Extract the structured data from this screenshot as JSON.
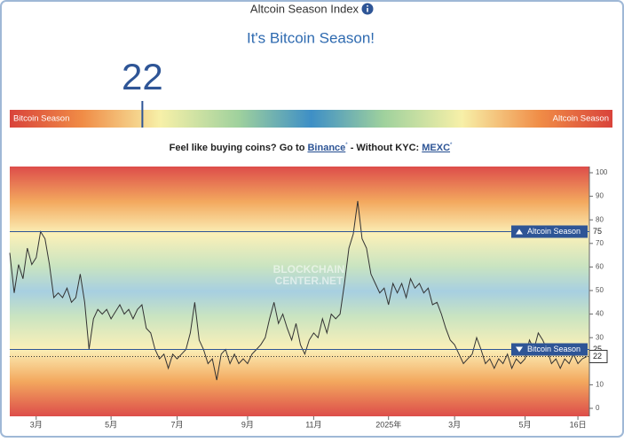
{
  "header": {
    "title": "Altcoin Season Index",
    "status": "It's Bitcoin Season!"
  },
  "index": {
    "value": 22,
    "min": 0,
    "max": 100,
    "left_label": "Bitcoin Season",
    "right_label": "Altcoin Season"
  },
  "promo": {
    "text": "Feel like buying coins? Go to",
    "link1": "Binance",
    "mark": "*",
    "middle": "- Without KYC:",
    "link2": "MEXC"
  },
  "watermark": [
    "BLOCKCHAIN",
    "CENTER.NET"
  ],
  "chart_data": {
    "type": "line",
    "color": "#333333",
    "values": [
      66,
      49,
      61,
      55,
      68,
      61,
      64,
      75,
      72,
      61,
      47,
      49,
      47,
      51,
      45,
      47,
      57,
      45,
      25,
      38,
      42,
      40,
      42,
      38,
      41,
      44,
      40,
      42,
      38,
      42,
      44,
      34,
      32,
      25,
      21,
      23,
      17,
      23,
      21,
      23,
      25,
      32,
      45,
      29,
      25,
      19,
      21,
      12,
      23,
      25,
      19,
      23,
      19,
      21,
      19,
      23,
      25,
      27,
      30,
      38,
      45,
      36,
      40,
      34,
      29,
      36,
      27,
      23,
      29,
      32,
      30,
      38,
      32,
      40,
      38,
      40,
      53,
      68,
      74,
      88,
      72,
      68,
      57,
      53,
      49,
      51,
      44,
      53,
      49,
      53,
      47,
      55,
      51,
      53,
      49,
      51,
      44,
      45,
      40,
      34,
      29,
      27,
      23,
      19,
      21,
      23,
      30,
      25,
      19,
      21,
      17,
      21,
      19,
      23,
      17,
      21,
      19,
      21,
      29,
      25,
      32,
      29,
      25,
      19,
      21,
      17,
      21,
      19,
      23,
      19,
      21,
      22
    ],
    "xticks": [
      {
        "value": 6,
        "label": "3月"
      },
      {
        "value": 23,
        "label": "5月"
      },
      {
        "value": 38,
        "label": "7月"
      },
      {
        "value": 54,
        "label": "9月"
      },
      {
        "value": 69,
        "label": "11月"
      },
      {
        "value": 86,
        "label": "2025年"
      },
      {
        "value": 101,
        "label": "3月"
      },
      {
        "value": 117,
        "label": "5月"
      },
      {
        "value": 129,
        "label": "16日"
      }
    ],
    "ylim": [
      0,
      100
    ],
    "yticks": [
      0,
      10,
      20,
      30,
      40,
      50,
      60,
      70,
      80,
      90,
      100
    ],
    "reference_lines": [
      {
        "label": "Altcoin Season",
        "value": 75
      },
      {
        "label": "Bitcoin Season",
        "value": 25
      }
    ]
  }
}
